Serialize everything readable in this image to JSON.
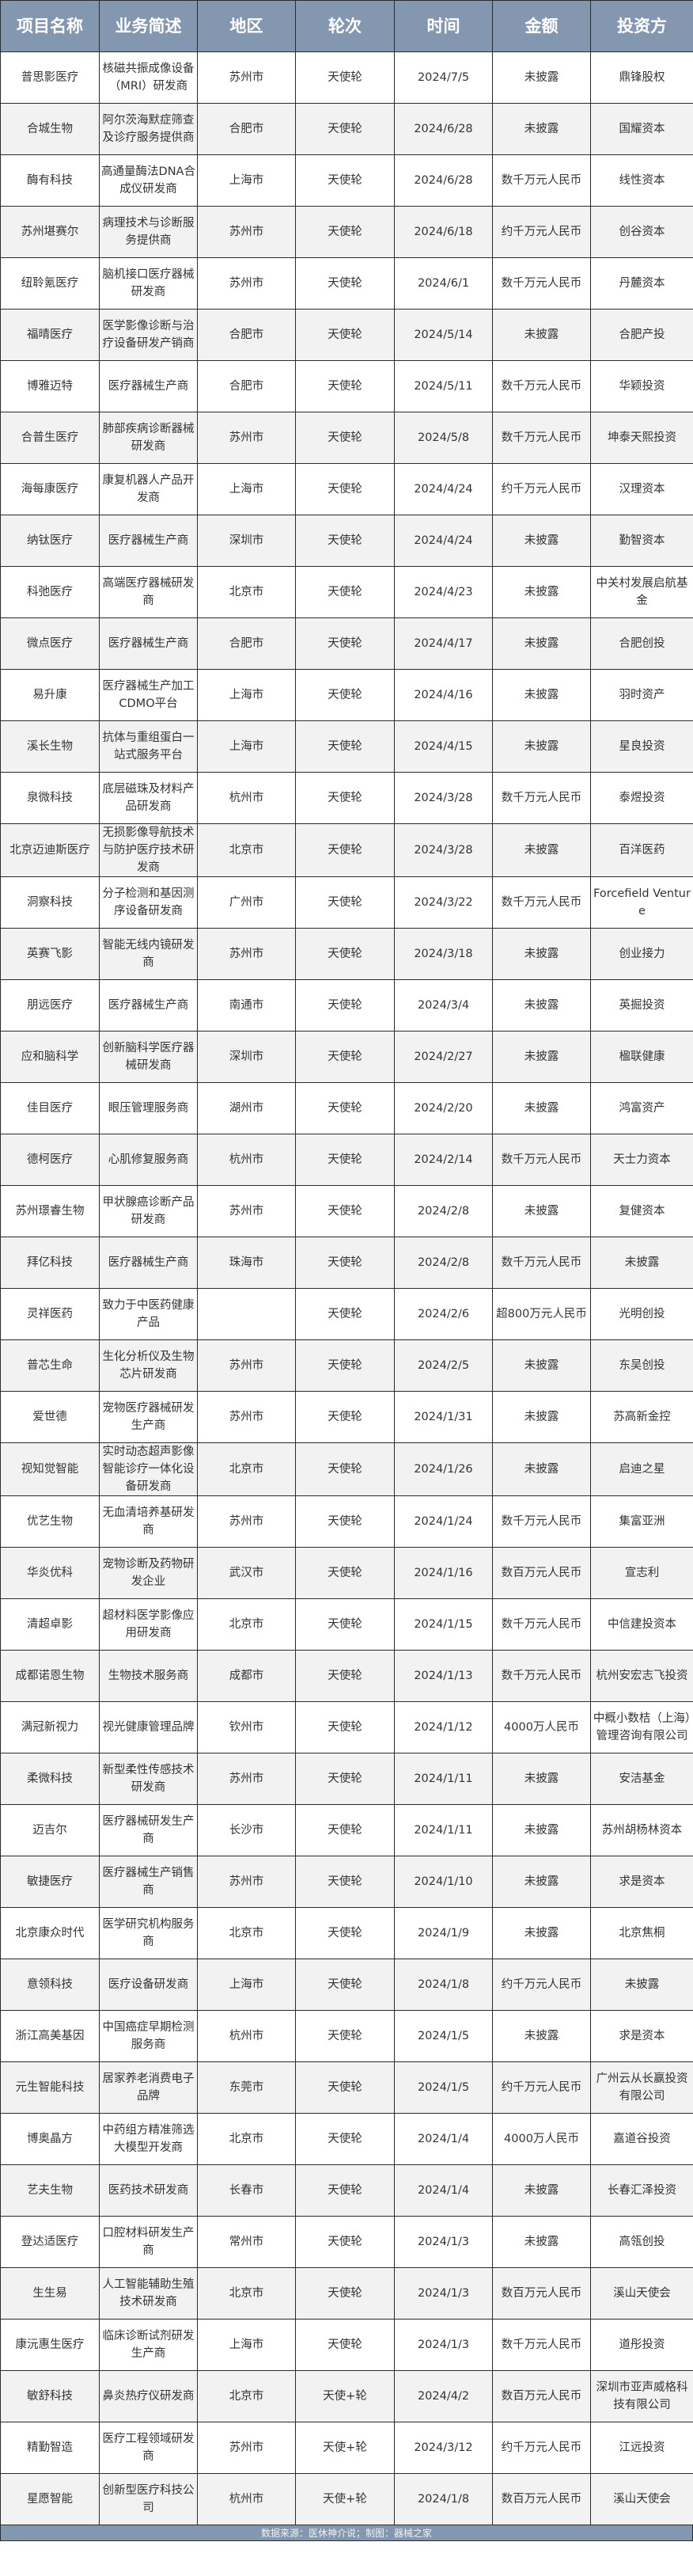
{
  "colors": {
    "header_bg": "#8497b0",
    "header_text": "#ffffff",
    "row_alt_bg": "#f2f2f2",
    "row_bg": "#ffffff",
    "text": "#333333"
  },
  "headers": [
    "项目名称",
    "业务简述",
    "地区",
    "轮次",
    "时间",
    "金额",
    "投资方"
  ],
  "rows": [
    [
      "普思影医疗",
      "核磁共振成像设备（MRI）研发商",
      "苏州市",
      "天使轮",
      "2024/7/5",
      "未披露",
      "鼎锋股权"
    ],
    [
      "合城生物",
      "阿尔茨海默症筛查及诊疗服务提供商",
      "合肥市",
      "天使轮",
      "2024/6/28",
      "未披露",
      "国耀资本"
    ],
    [
      "酶有科技",
      "高通量酶法DNA合成仪研发商",
      "上海市",
      "天使轮",
      "2024/6/28",
      "数千万元人民币",
      "线性资本"
    ],
    [
      "苏州堪赛尔",
      "病理技术与诊断服务提供商",
      "苏州市",
      "天使轮",
      "2024/6/18",
      "约千万元人民币",
      "创谷资本"
    ],
    [
      "纽聆氪医疗",
      "脑机接口医疗器械研发商",
      "苏州市",
      "天使轮",
      "2024/6/1",
      "数千万元人民币",
      "丹麓资本"
    ],
    [
      "福晴医疗",
      "医学影像诊断与治疗设备研发产销商",
      "合肥市",
      "天使轮",
      "2024/5/14",
      "未披露",
      "合肥产投"
    ],
    [
      "博雅迈特",
      "医疗器械生产商",
      "合肥市",
      "天使轮",
      "2024/5/11",
      "数千万元人民币",
      "华颖投资"
    ],
    [
      "合普生医疗",
      "肺部疾病诊断器械研发商",
      "苏州市",
      "天使轮",
      "2024/5/8",
      "数千万元人民币",
      "坤泰天熙投资"
    ],
    [
      "海每康医疗",
      "康复机器人产品开发商",
      "上海市",
      "天使轮",
      "2024/4/24",
      "约千万元人民币",
      "汉理资本"
    ],
    [
      "纳钛医疗",
      "医疗器械生产商",
      "深圳市",
      "天使轮",
      "2024/4/24",
      "未披露",
      "勤智资本"
    ],
    [
      "科弛医疗",
      "高端医疗器械研发商",
      "北京市",
      "天使轮",
      "2024/4/23",
      "未披露",
      "中关村发展启航基金"
    ],
    [
      "微点医疗",
      "医疗器械生产商",
      "合肥市",
      "天使轮",
      "2024/4/17",
      "未披露",
      "合肥创投"
    ],
    [
      "易升康",
      "医疗器械生产加工CDMO平台",
      "上海市",
      "天使轮",
      "2024/4/16",
      "未披露",
      "羽时资产"
    ],
    [
      "溪长生物",
      "抗体与重组蛋白一站式服务平台",
      "上海市",
      "天使轮",
      "2024/4/15",
      "未披露",
      "星良投资"
    ],
    [
      "泉微科技",
      "底层磁珠及材料产品研发商",
      "杭州市",
      "天使轮",
      "2024/3/28",
      "数千万元人民币",
      "泰煜投资"
    ],
    [
      "北京迈迪斯医疗",
      "无损影像导航技术与防护医疗技术研发商",
      "北京市",
      "天使轮",
      "2024/3/28",
      "未披露",
      "百洋医药"
    ],
    [
      "洞察科技",
      "分子检测和基因测序设备研发商",
      "广州市",
      "天使轮",
      "2024/3/22",
      "数千万元人民币",
      "Forcefield Venture"
    ],
    [
      "英赛飞影",
      "智能无线内镜研发商",
      "苏州市",
      "天使轮",
      "2024/3/18",
      "未披露",
      "创业接力"
    ],
    [
      "朋远医疗",
      "医疗器械生产商",
      "南通市",
      "天使轮",
      "2024/3/4",
      "未披露",
      "英掘投资"
    ],
    [
      "应和脑科学",
      "创新脑科学医疗器械研发商",
      "深圳市",
      "天使轮",
      "2024/2/27",
      "未披露",
      "楹联健康"
    ],
    [
      "佳目医疗",
      "眼压管理服务商",
      "湖州市",
      "天使轮",
      "2024/2/20",
      "未披露",
      "鸿富资产"
    ],
    [
      "德柯医疗",
      "心肌修复服务商",
      "杭州市",
      "天使轮",
      "2024/2/14",
      "数千万元人民币",
      "天士力资本"
    ],
    [
      "苏州璟睿生物",
      "甲状腺癌诊断产品研发商",
      "苏州市",
      "天使轮",
      "2024/2/8",
      "未披露",
      "复健资本"
    ],
    [
      "拜亿科技",
      "医疗器械生产商",
      "珠海市",
      "天使轮",
      "2024/2/8",
      "数千万元人民币",
      "未披露"
    ],
    [
      "灵祥医药",
      "致力于中医药健康产品",
      "",
      "天使轮",
      "2024/2/6",
      "超800万元人民币",
      "光明创投"
    ],
    [
      "普芯生命",
      "生化分析仪及生物芯片研发商",
      "苏州市",
      "天使轮",
      "2024/2/5",
      "未披露",
      "东吴创投"
    ],
    [
      "爱世德",
      "宠物医疗器械研发生产商",
      "苏州市",
      "天使轮",
      "2024/1/31",
      "未披露",
      "苏高新金控"
    ],
    [
      "视知觉智能",
      "实时动态超声影像智能诊疗一体化设备研发商",
      "北京市",
      "天使轮",
      "2024/1/26",
      "未披露",
      "启迪之星"
    ],
    [
      "优艺生物",
      "无血清培养基研发商",
      "苏州市",
      "天使轮",
      "2024/1/24",
      "数千万元人民币",
      "集富亚洲"
    ],
    [
      "华炎优科",
      "宠物诊断及药物研发企业",
      "武汉市",
      "天使轮",
      "2024/1/16",
      "数百万元人民币",
      "宣志利"
    ],
    [
      "清超卓影",
      "超材料医学影像应用研发商",
      "北京市",
      "天使轮",
      "2024/1/15",
      "数千万元人民币",
      "中信建投资本"
    ],
    [
      "成都诺恩生物",
      "生物技术服务商",
      "成都市",
      "天使轮",
      "2024/1/13",
      "数千万元人民币",
      "杭州安宏志飞投资"
    ],
    [
      "满冠新视力",
      "视光健康管理品牌",
      "钦州市",
      "天使轮",
      "2024/1/12",
      "4000万人民币",
      "中概小数桔（上海）管理咨询有限公司"
    ],
    [
      "柔微科技",
      "新型柔性传感技术研发商",
      "苏州市",
      "天使轮",
      "2024/1/11",
      "未披露",
      "安洁基金"
    ],
    [
      "迈吉尔",
      "医疗器械研发生产商",
      "长沙市",
      "天使轮",
      "2024/1/11",
      "未披露",
      "苏州胡杨林资本"
    ],
    [
      "敏捷医疗",
      "医疗器械生产销售商",
      "苏州市",
      "天使轮",
      "2024/1/10",
      "未披露",
      "求是资本"
    ],
    [
      "北京康众时代",
      "医学研究机构服务商",
      "北京市",
      "天使轮",
      "2024/1/9",
      "未披露",
      "北京焦桐"
    ],
    [
      "意领科技",
      "医疗设备研发商",
      "上海市",
      "天使轮",
      "2024/1/8",
      "约千万元人民币",
      "未披露"
    ],
    [
      "浙江高美基因",
      "中国癌症早期检测服务商",
      "杭州市",
      "天使轮",
      "2024/1/5",
      "未披露",
      "求是资本"
    ],
    [
      "元生智能科技",
      "居家养老消费电子品牌",
      "东莞市",
      "天使轮",
      "2024/1/5",
      "约千万元人民币",
      "广州云从长赢投资有限公司"
    ],
    [
      "博奥晶方",
      "中药组方精准筛选大模型开发商",
      "北京市",
      "天使轮",
      "2024/1/4",
      "4000万人民币",
      "嘉道谷投资"
    ],
    [
      "艺夫生物",
      "医药技术研发商",
      "长春市",
      "天使轮",
      "2024/1/4",
      "未披露",
      "长春汇泽投资"
    ],
    [
      "登达适医疗",
      "口腔材料研发生产商",
      "常州市",
      "天使轮",
      "2024/1/3",
      "未披露",
      "高瓴创投"
    ],
    [
      "生生易",
      "人工智能辅助生殖技术研发商",
      "北京市",
      "天使轮",
      "2024/1/3",
      "数百万元人民币",
      "溪山天使会"
    ],
    [
      "康沅惠生医疗",
      "临床诊断试剂研发生产商",
      "上海市",
      "天使轮",
      "2024/1/3",
      "数千万元人民币",
      "道彤投资"
    ],
    [
      "敏舒科技",
      "鼻炎热疗仪研发商",
      "北京市",
      "天使+轮",
      "2024/4/2",
      "数百万元人民币",
      "深圳市亚声威格科技有限公司"
    ],
    [
      "精勤智造",
      "医疗工程领域研发商",
      "苏州市",
      "天使+轮",
      "2024/3/12",
      "约千万元人民币",
      "江远投资"
    ],
    [
      "星愿智能",
      "创新型医疗科技公司",
      "杭州市",
      "天使+轮",
      "2024/1/8",
      "数百万元人民币",
      "溪山天使会"
    ]
  ],
  "footer": "数据来源：医休神介说；制图：器械之家"
}
